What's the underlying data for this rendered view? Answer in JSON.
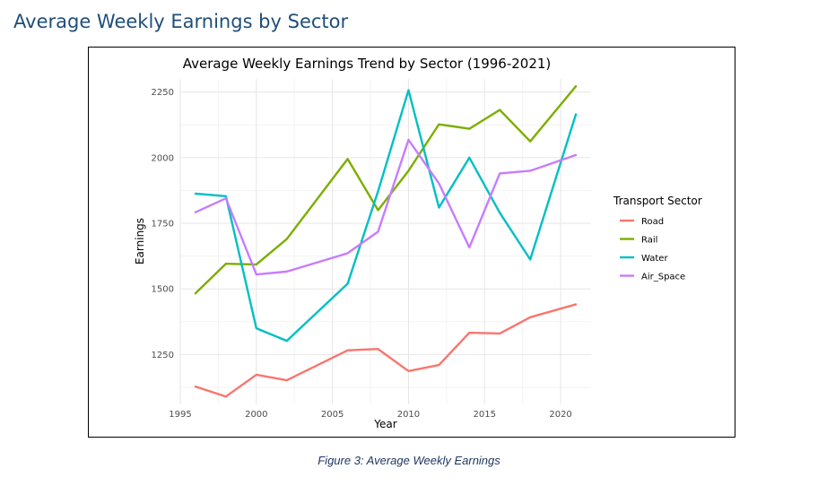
{
  "heading": "Average Weekly Earnings by Sector",
  "caption": "Figure 3: Average Weekly Earnings",
  "chart_data": {
    "type": "line",
    "title": "Average Weekly Earnings Trend by Sector (1996-2021)",
    "xlabel": "Year",
    "ylabel": "Earnings",
    "legend_title": "Transport Sector",
    "legend_position": "right",
    "grid": true,
    "xlim": [
      1995,
      2022
    ],
    "ylim": [
      1060,
      2300
    ],
    "x_ticks": [
      1995,
      2000,
      2005,
      2010,
      2015,
      2020
    ],
    "y_ticks": [
      1250,
      1500,
      1750,
      2000,
      2250
    ],
    "x": [
      1996,
      1998,
      2000,
      2002,
      2006,
      2008,
      2010,
      2012,
      2014,
      2016,
      2018,
      2021
    ],
    "series": [
      {
        "name": "Road",
        "color": "#f8766d",
        "values": [
          1128,
          1090,
          1173,
          1152,
          1266,
          1271,
          1187,
          1210,
          1333,
          1330,
          1392,
          1441
        ]
      },
      {
        "name": "Rail",
        "color": "#7cae00",
        "values": [
          1483,
          1596,
          1593,
          1690,
          1995,
          1800,
          1950,
          2127,
          2110,
          2182,
          2062,
          2272
        ]
      },
      {
        "name": "Water",
        "color": "#00bfc4",
        "values": [
          1863,
          1853,
          1350,
          1302,
          1520,
          1872,
          2257,
          1810,
          2000,
          1790,
          1612,
          2165
        ]
      },
      {
        "name": "Air_Space",
        "color": "#c77cff",
        "values": [
          1792,
          1845,
          1555,
          1566,
          1636,
          1718,
          2068,
          1902,
          1658,
          1940,
          1950,
          2010
        ]
      }
    ]
  }
}
